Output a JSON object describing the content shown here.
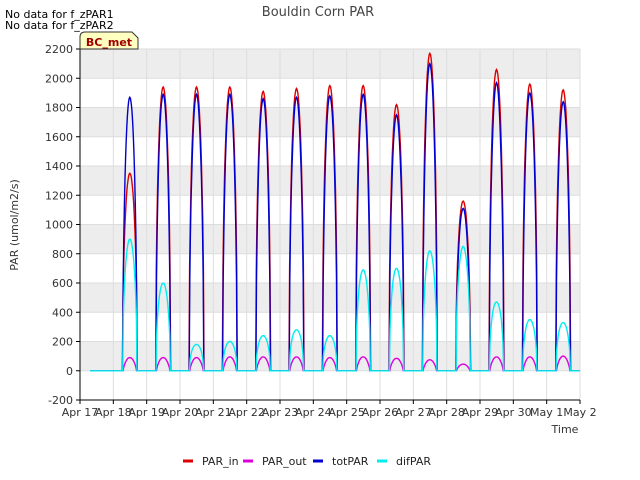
{
  "nodata": [
    "No data for f_zPAR1",
    "No data for f_zPAR2"
  ],
  "chart_data": {
    "type": "line",
    "title": "Bouldin Corn PAR",
    "xlabel": "Time",
    "ylabel": "PAR (umol/m2/s)",
    "ylim": [
      -200,
      2200
    ],
    "yticks": [
      -200,
      0,
      200,
      400,
      600,
      800,
      1000,
      1200,
      1400,
      1600,
      1800,
      2000,
      2200
    ],
    "xlim": [
      0,
      15
    ],
    "xtick_labels": [
      "Apr 17",
      "Apr 18",
      "Apr 19",
      "Apr 20",
      "Apr 21",
      "Apr 22",
      "Apr 23",
      "Apr 24",
      "Apr 25",
      "Apr 26",
      "Apr 27",
      "Apr 28",
      "Apr 29",
      "Apr 30",
      "May 1",
      "May 2"
    ],
    "site_label": "BC_met",
    "legend": [
      "PAR_in",
      "PAR_out",
      "totPAR",
      "difPAR"
    ],
    "colors": {
      "PAR_in": "#dd0000",
      "PAR_out": "#dd00dd",
      "totPAR": "#0000cc",
      "difPAR": "#00eeee"
    },
    "daily_peaks": {
      "PAR_in": [
        1350,
        1940,
        1940,
        1940,
        1910,
        1930,
        1950,
        1950,
        1820,
        2170,
        1160,
        2060,
        1960,
        1920
      ],
      "totPAR": [
        1870,
        1890,
        1890,
        1890,
        1860,
        1870,
        1880,
        1890,
        1750,
        2100,
        1110,
        1970,
        1900,
        1840
      ],
      "PAR_out": [
        90,
        90,
        90,
        95,
        95,
        95,
        90,
        95,
        85,
        75,
        45,
        95,
        95,
        100
      ],
      "difPAR": [
        900,
        600,
        180,
        200,
        240,
        280,
        240,
        690,
        700,
        820,
        850,
        470,
        350,
        330
      ]
    }
  }
}
